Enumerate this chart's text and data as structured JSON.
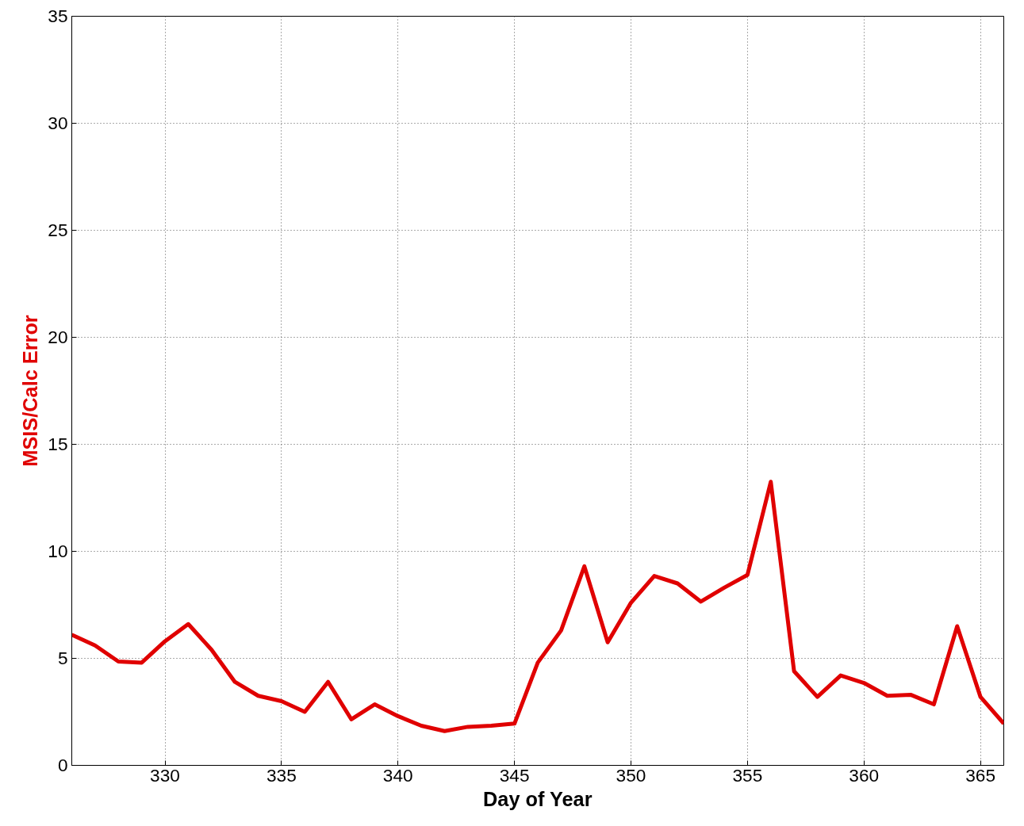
{
  "chart_data": {
    "type": "line",
    "xlabel": "Day of Year",
    "ylabel": "MSIS/Calc Error",
    "x": [
      326,
      327,
      328,
      329,
      330,
      331,
      332,
      333,
      334,
      335,
      336,
      337,
      338,
      339,
      340,
      341,
      342,
      343,
      344,
      345,
      346,
      347,
      348,
      349,
      350,
      351,
      352,
      353,
      354,
      355,
      356,
      357,
      358,
      359,
      360,
      361,
      362,
      363,
      364,
      365,
      366
    ],
    "series": [
      {
        "color": "#e00000",
        "values": [
          6.1,
          5.6,
          4.85,
          4.8,
          5.8,
          6.6,
          5.4,
          3.9,
          3.25,
          3.0,
          2.5,
          3.9,
          2.15,
          2.85,
          2.3,
          1.85,
          1.6,
          1.8,
          1.85,
          1.95,
          4.8,
          6.3,
          9.3,
          5.75,
          7.6,
          8.85,
          8.5,
          7.65,
          8.3,
          8.9,
          13.25,
          4.4,
          3.2,
          4.2,
          3.85,
          3.25,
          3.3,
          2.85,
          6.5,
          3.2,
          1.95
        ]
      }
    ],
    "xlim": [
      326,
      366
    ],
    "ylim": [
      0,
      35
    ],
    "xticks": [
      330,
      335,
      340,
      345,
      350,
      355,
      360,
      365
    ],
    "yticks": [
      0,
      5,
      10,
      15,
      20,
      25,
      30,
      35
    ],
    "grid": true,
    "line_style": "solid",
    "marker": "none"
  }
}
